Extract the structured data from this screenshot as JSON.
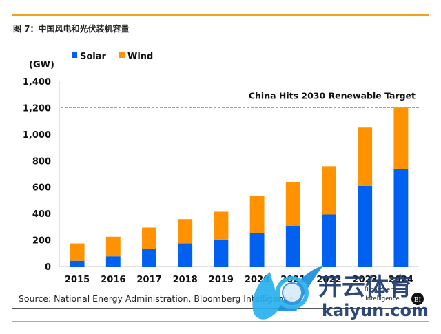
{
  "figure_title": "图 7：中国风电和光伏装机容量",
  "source": "Source: National Energy Administration, Bloomberg Intelligence",
  "branding": {
    "line1": "Bloomberg",
    "line2": "Intelligence",
    "badge": "BI"
  },
  "watermark": {
    "cn_text": "开云体育",
    "en_text": "kaiyun.com"
  },
  "colors": {
    "solar": "#0060f0",
    "wind": "#ff9200",
    "target_line": "#f08080",
    "rule": "#f5a01a",
    "axis": "#d9d9d9"
  },
  "chart_data": {
    "type": "bar",
    "stacked": true,
    "title": "",
    "ylabel": "(GW)",
    "xlabel": "",
    "ylim": [
      0,
      1400
    ],
    "yticks": [
      0,
      200,
      400,
      600,
      800,
      1000,
      1200,
      1400
    ],
    "ytick_labels": [
      "0",
      "200",
      "400",
      "600",
      "800",
      "1,000",
      "1,200",
      "1,400"
    ],
    "categories": [
      "2015",
      "2016",
      "2017",
      "2018",
      "2019",
      "2020",
      "2021",
      "2022",
      "2023",
      "2024"
    ],
    "series": [
      {
        "name": "Solar",
        "values": [
          43,
          77,
          130,
          174,
          204,
          253,
          307,
          393,
          609,
          735
        ]
      },
      {
        "name": "Wind",
        "values": [
          131,
          148,
          164,
          184,
          210,
          282,
          328,
          365,
          441,
          466
        ]
      }
    ],
    "legend": {
      "position": "top-left",
      "entries": [
        "Solar",
        "Wind"
      ]
    },
    "grid": false,
    "annotations": [
      {
        "type": "hline",
        "y": 1200,
        "style": "dashed",
        "label": "China Hits 2030 Renewable Target"
      }
    ]
  }
}
